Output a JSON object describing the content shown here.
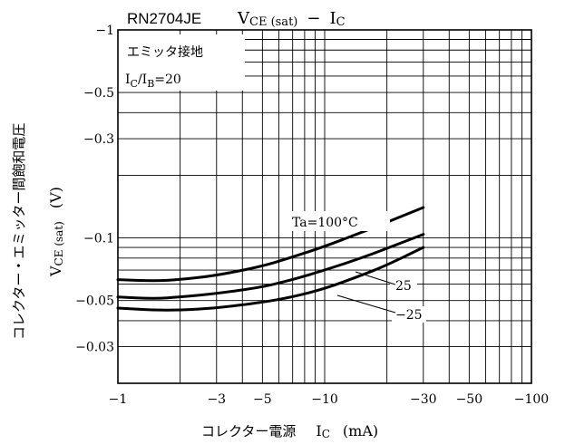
{
  "chart_data": {
    "type": "line",
    "part_number": "RN2704JE",
    "title": "V",
    "title_sub1": "CE (sat)",
    "title_sep": "−",
    "title_main2": "I",
    "title_sub2": "C",
    "xlabel_jp": "コレクター電源",
    "xlabel_var": "I",
    "xlabel_sub": "C",
    "xlabel_unit": "(mA)",
    "ylabel_jp": "コレクター・エミッター間飽和電圧",
    "ylabel_var": "V",
    "ylabel_sub": "CE (sat)",
    "ylabel_unit": "(V)",
    "x_scale": "log",
    "y_scale": "log",
    "xlim": [
      -1,
      -100
    ],
    "ylim": [
      -0.02,
      -1
    ],
    "grid": true,
    "x_ticks": [
      {
        "value": -1,
        "label": "−1"
      },
      {
        "value": -3,
        "label": "−3"
      },
      {
        "value": -5,
        "label": "−5"
      },
      {
        "value": -10,
        "label": "−10"
      },
      {
        "value": -30,
        "label": "−30"
      },
      {
        "value": -50,
        "label": "−50"
      },
      {
        "value": -100,
        "label": "−100"
      }
    ],
    "y_ticks": [
      {
        "value": -1,
        "label": "−1"
      },
      {
        "value": -0.5,
        "label": "−0.5"
      },
      {
        "value": -0.3,
        "label": "−0.3"
      },
      {
        "value": -0.1,
        "label": "−0.1"
      },
      {
        "value": -0.05,
        "label": "−0.05"
      },
      {
        "value": -0.03,
        "label": "−0.03"
      }
    ],
    "annotations": {
      "condition1": "エミッタ接地",
      "cond2_I": "I",
      "cond2_C": "C",
      "cond2_slash": "/",
      "cond2_I2": "I",
      "cond2_B": "B",
      "cond2_val": "=20",
      "ta_label": "Ta=100°C"
    },
    "series": [
      {
        "name": "Ta=100°C",
        "x": [
          -1,
          -1.5,
          -2,
          -3,
          -5,
          -7,
          -10,
          -15,
          -20,
          -30
        ],
        "y": [
          -0.063,
          -0.062,
          -0.063,
          -0.066,
          -0.073,
          -0.081,
          -0.091,
          -0.106,
          -0.119,
          -0.14
        ]
      },
      {
        "name": "25",
        "x": [
          -1,
          -1.5,
          -2,
          -3,
          -5,
          -7,
          -10,
          -15,
          -20,
          -30
        ],
        "y": [
          -0.052,
          -0.051,
          -0.052,
          -0.054,
          -0.058,
          -0.063,
          -0.07,
          -0.08,
          -0.089,
          -0.104
        ]
      },
      {
        "name": "−25",
        "x": [
          -1,
          -1.5,
          -2,
          -3,
          -5,
          -7,
          -10,
          -15,
          -20,
          -30
        ],
        "y": [
          -0.046,
          -0.045,
          -0.045,
          -0.046,
          -0.049,
          -0.052,
          -0.057,
          -0.066,
          -0.074,
          -0.09
        ]
      }
    ]
  }
}
